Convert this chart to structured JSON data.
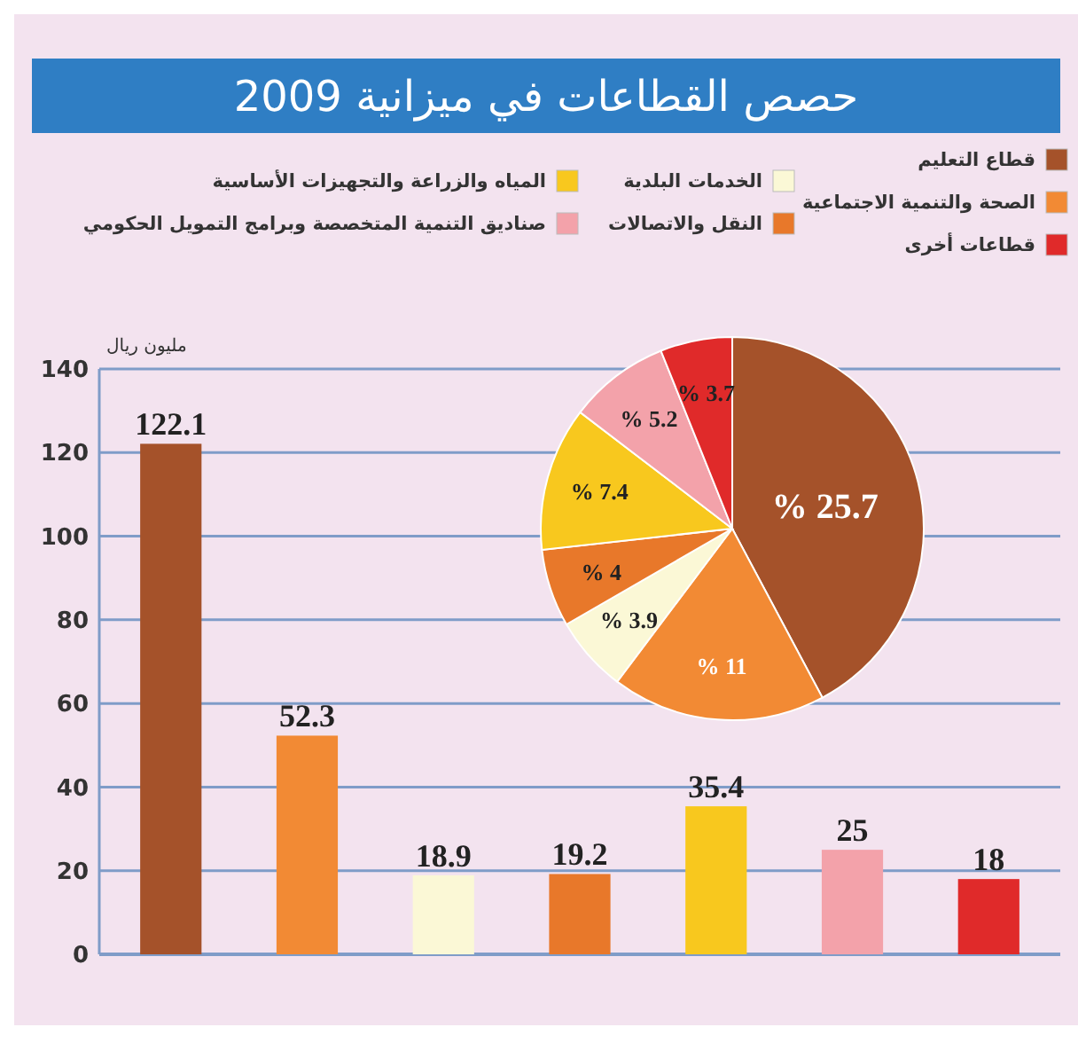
{
  "chart_data": [
    {
      "type": "bar",
      "title": "حصص القطاعات في ميزانية 2009",
      "ylabel": "مليون ريال",
      "categories": [
        null,
        null,
        null,
        null,
        null,
        null,
        null
      ],
      "values": [
        122.1,
        52.3,
        18.9,
        19.2,
        35.4,
        25,
        18
      ],
      "colors": [
        "#a5522a",
        "#f28a34",
        "#fbf8d6",
        "#e8782a",
        "#f8c81e",
        "#f3a2aa",
        "#e02a2a"
      ],
      "ylim": [
        0,
        140
      ],
      "yticks": [
        0,
        20,
        40,
        60,
        80,
        100,
        120,
        140
      ],
      "grid": "y",
      "data_labels": true
    },
    {
      "type": "pie",
      "categories": [
        "قطاع التعليم",
        "الصحة والتنمية الاجتماعية",
        "الخدمات البلدية",
        "النقل والاتصالات",
        "المياه والزراعة والتجهيزات الأساسية",
        "صناديق التنمية المتخصصة وبرامج التمويل الحكومي",
        "قطاعات أخرى"
      ],
      "values": [
        25.7,
        11,
        3.9,
        4,
        7.4,
        5.2,
        3.7
      ],
      "value_labels": [
        "% 25.7",
        "% 11",
        "% 3.9",
        "% 4",
        "% 7.4",
        "% 5.2",
        "% 3.7"
      ],
      "colors": [
        "#a5522a",
        "#f28a34",
        "#fbf8d6",
        "#e8782a",
        "#f8c81e",
        "#f3a2aa",
        "#e02a2a"
      ],
      "legend": "top"
    }
  ]
}
